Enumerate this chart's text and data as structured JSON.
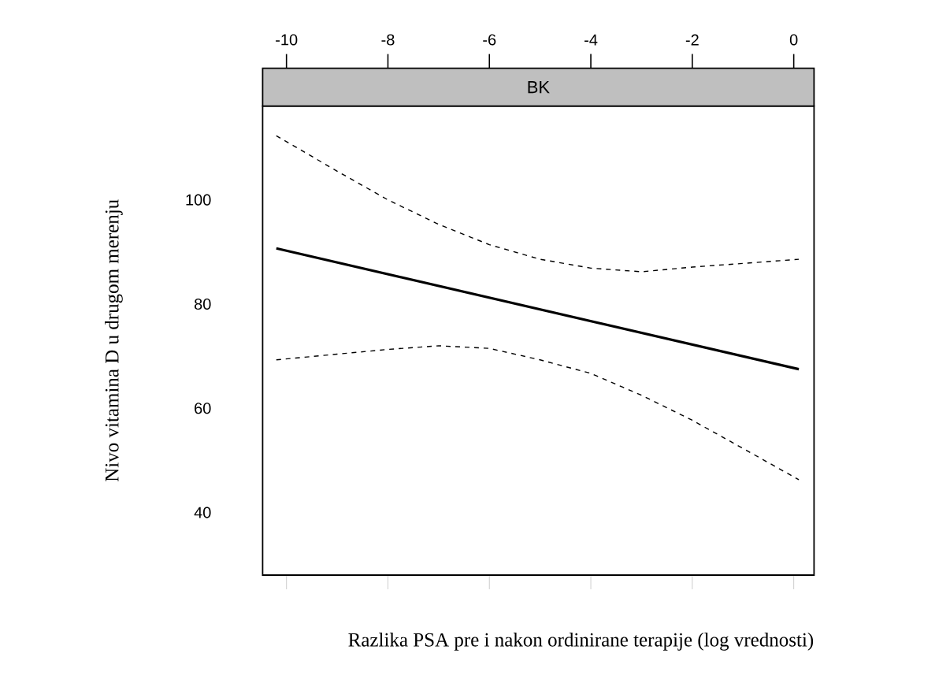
{
  "chart_data": {
    "type": "line",
    "subtitle": "BK",
    "xlabel": "Razlika PSA pre i nakon ordinirane terapije (log vrednosti)",
    "ylabel": "Nivo vitamina D u drugom merenju",
    "xlim": [
      -10.47,
      0.4
    ],
    "ylim": [
      28,
      118
    ],
    "xticks": [
      -10,
      -8,
      -6,
      -4,
      -2,
      0
    ],
    "yticks": [
      40,
      60,
      80,
      100
    ],
    "grid": false,
    "marker": "none",
    "series": [
      {
        "color": "#000000",
        "line_style": "solid",
        "x": [
          -10.2,
          0.1
        ],
        "values": [
          90.7,
          67.5
        ]
      },
      {
        "color": "#000000",
        "line_style": "dashed",
        "x": [
          -10.2,
          -9,
          -8,
          -7,
          -6,
          -5,
          -4,
          -3,
          -2,
          -1,
          0.1
        ],
        "values": [
          112.3,
          105.5,
          100,
          95.3,
          91.4,
          88.6,
          86.9,
          86.2,
          87.1,
          87.8,
          88.6
        ]
      },
      {
        "color": "#000000",
        "line_style": "dashed",
        "x": [
          -10.2,
          -9,
          -8,
          -7,
          -6,
          -5,
          -4,
          -3,
          -2,
          -1,
          0.1
        ],
        "values": [
          69.3,
          70.4,
          71.3,
          72,
          71.5,
          69.3,
          66.7,
          62.5,
          57.7,
          52.3,
          46.3
        ]
      }
    ]
  }
}
